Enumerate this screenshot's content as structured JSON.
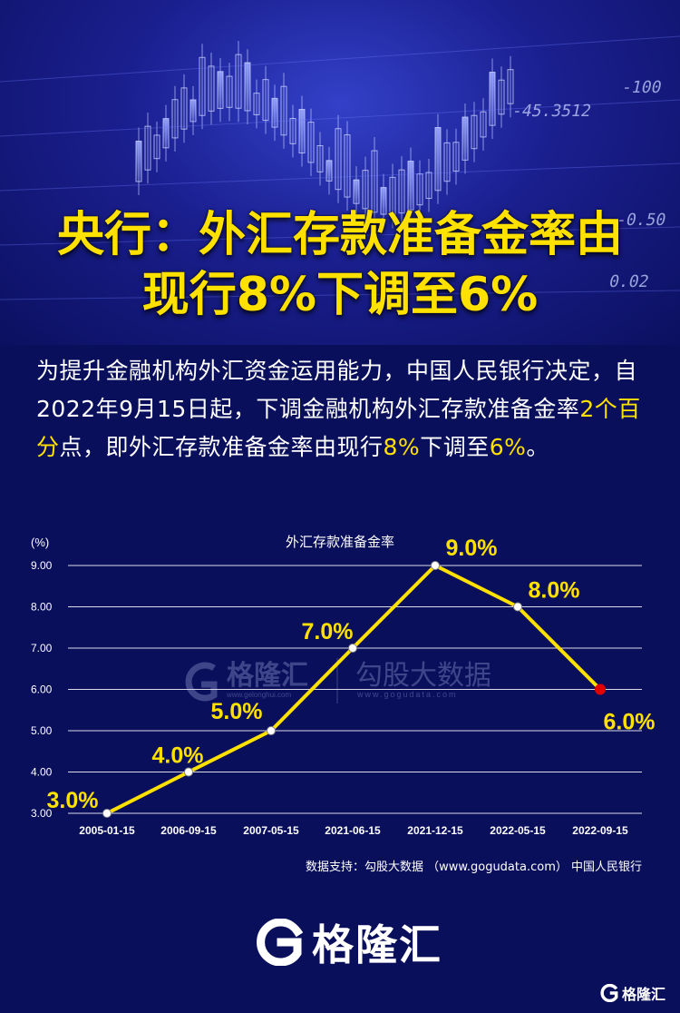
{
  "hero": {
    "numbers": [
      "-45.3512",
      "-100",
      "0.02",
      "-0.50"
    ],
    "title_line1": "央行：外汇存款准备金率由",
    "title_line2": "现行8%下调至6%"
  },
  "description": {
    "part1": "为提升金融机构外汇资金运用能力，中国人民银行决定，自2022年9月15日起，下调金融机构外汇存款准备金率",
    "highlight1": "2个百分",
    "part2": "点，即外汇存款准备金率由现行",
    "highlight2": "8%",
    "part3": "下调至",
    "highlight3": "6%",
    "part4": "。"
  },
  "chart_data": {
    "type": "line",
    "title": "外汇存款准备金率",
    "ylabel": "(%)",
    "xlabel": "",
    "categories": [
      "2005-01-15",
      "2006-09-15",
      "2007-05-15",
      "2021-06-15",
      "2021-12-15",
      "2022-05-15",
      "2022-09-15"
    ],
    "series": [
      {
        "values": [
          3.0,
          4.0,
          5.0,
          7.0,
          9.0,
          8.0,
          6.0
        ]
      }
    ],
    "data_labels": [
      "3.0%",
      "4.0%",
      "5.0%",
      "7.0%",
      "9.0%",
      "8.0%",
      "6.0%"
    ],
    "yticks": [
      "3.00",
      "4.00",
      "5.00",
      "6.00",
      "7.00",
      "8.00",
      "9.00"
    ],
    "ylim": [
      3,
      9
    ],
    "grid": true,
    "colors": {
      "line": "#ffe100",
      "point": "#ffffff",
      "last_point": "#e00000",
      "label": "#ffe100",
      "grid": "#ffffff"
    }
  },
  "watermark": {
    "brand": "格隆汇",
    "brand_url": "www.gelonghui.com",
    "partner": "勾股大数据",
    "partner_url": "www.gogudata.com"
  },
  "source": "数据支持：勾股大数据 （www.gogudata.com） 中国人民银行",
  "footer": {
    "logo_text": "格隆汇",
    "small_logo_text": "格隆汇"
  }
}
